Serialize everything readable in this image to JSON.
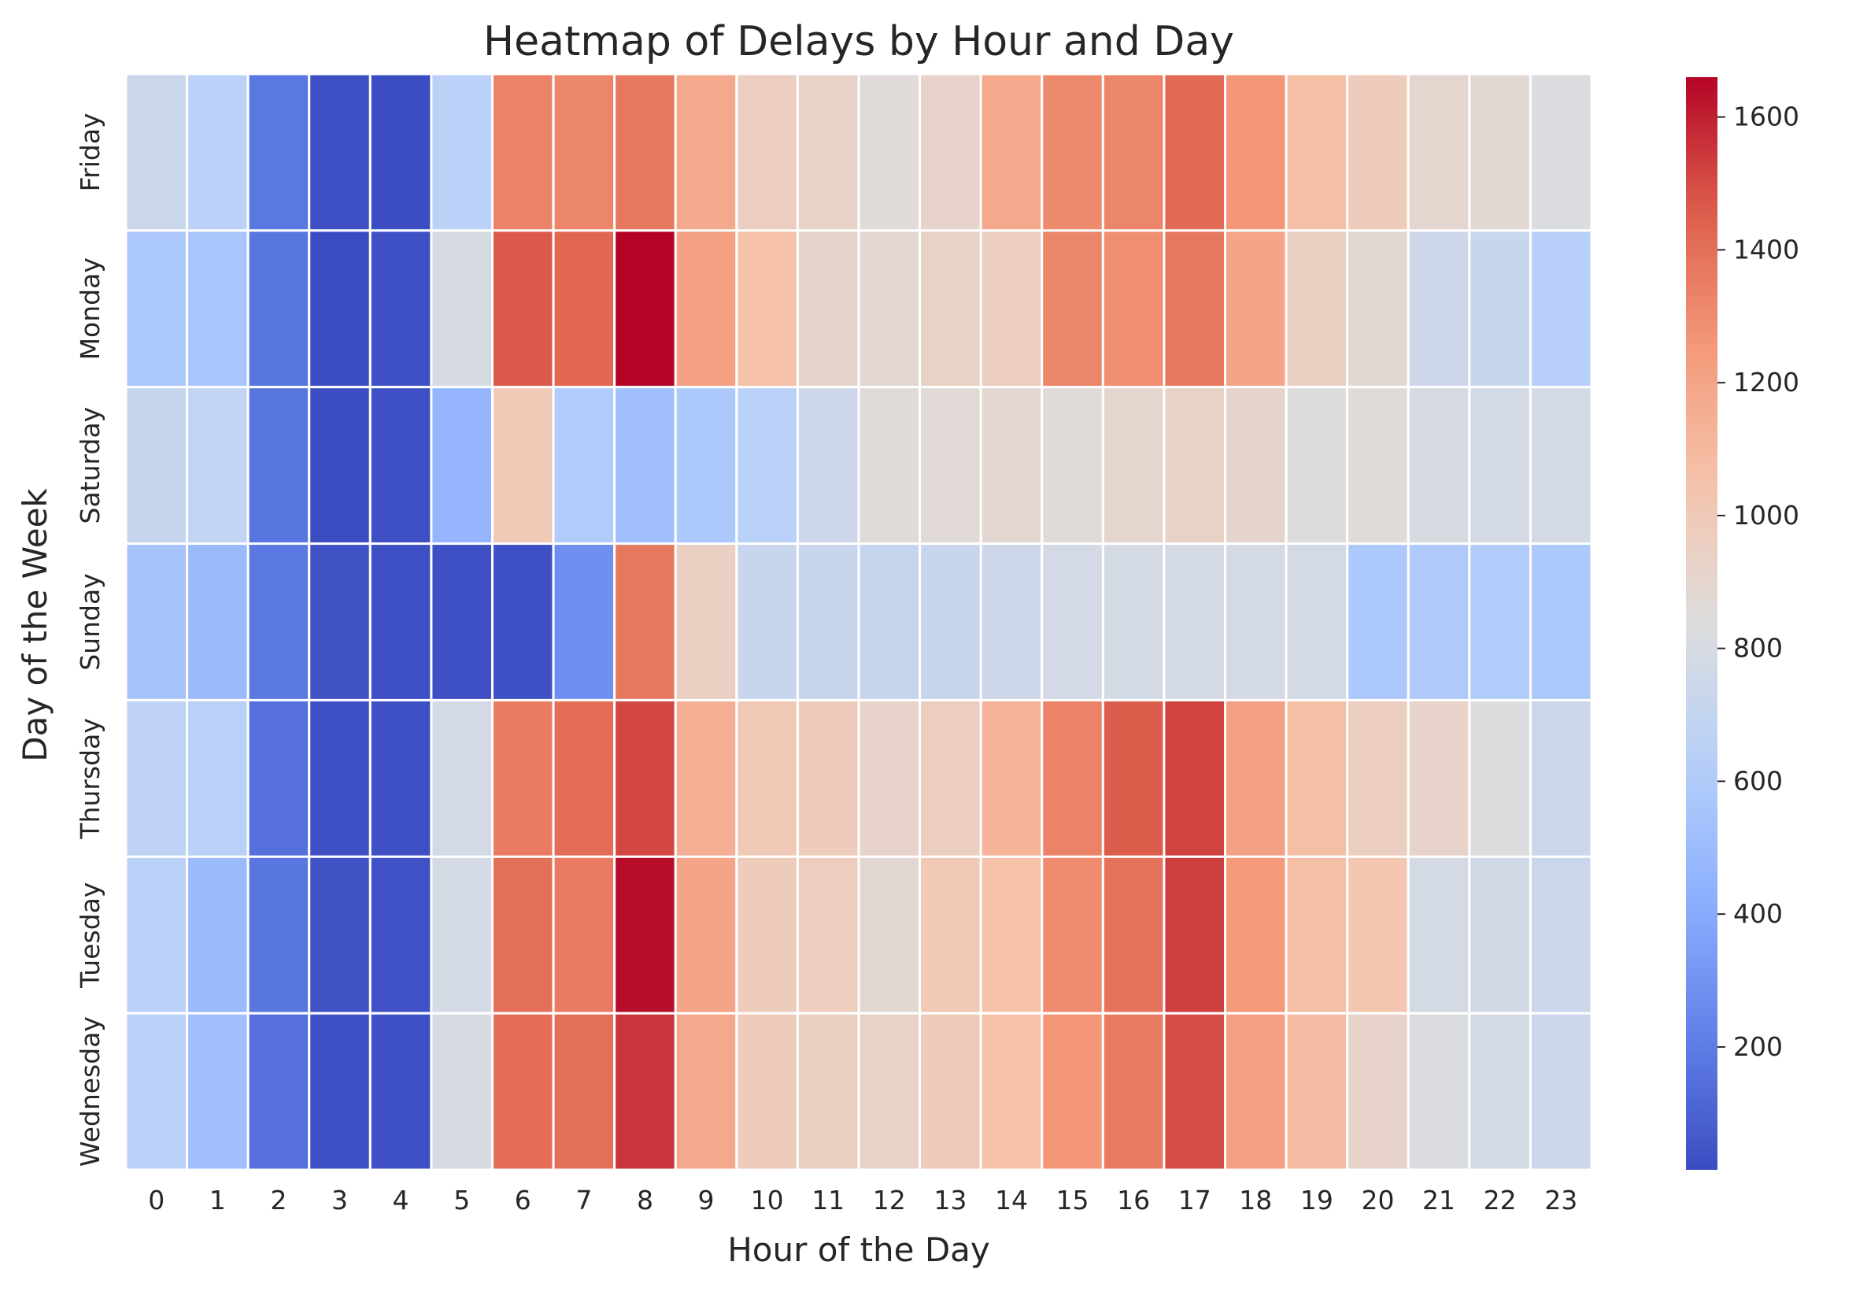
{
  "chart_data": {
    "type": "heatmap",
    "title": "Heatmap of Delays by Hour and Day",
    "xlabel": "Hour of the Day",
    "ylabel": "Day of the Week",
    "x": [
      "0",
      "1",
      "2",
      "3",
      "4",
      "5",
      "6",
      "7",
      "8",
      "9",
      "10",
      "11",
      "12",
      "13",
      "14",
      "15",
      "16",
      "17",
      "18",
      "19",
      "20",
      "21",
      "22",
      "23"
    ],
    "y": [
      "Friday",
      "Monday",
      "Saturday",
      "Sunday",
      "Thursday",
      "Tuesday",
      "Wednesday"
    ],
    "values": [
      [
        730,
        650,
        180,
        25,
        20,
        650,
        1330,
        1320,
        1370,
        1180,
        960,
        930,
        860,
        920,
        1180,
        1310,
        1320,
        1420,
        1260,
        1070,
        980,
        900,
        880,
        820
      ],
      [
        580,
        560,
        170,
        20,
        30,
        800,
        1470,
        1430,
        1660,
        1220,
        1060,
        910,
        890,
        930,
        960,
        1320,
        1290,
        1370,
        1200,
        950,
        880,
        750,
        720,
        630
      ],
      [
        710,
        690,
        170,
        20,
        30,
        460,
        1000,
        600,
        520,
        580,
        640,
        750,
        860,
        870,
        890,
        860,
        900,
        940,
        910,
        840,
        860,
        800,
        780,
        780
      ],
      [
        550,
        490,
        180,
        40,
        30,
        25,
        30,
        280,
        1370,
        950,
        720,
        720,
        710,
        720,
        750,
        780,
        790,
        790,
        790,
        780,
        580,
        590,
        600,
        580
      ],
      [
        660,
        640,
        150,
        30,
        30,
        780,
        1360,
        1410,
        1510,
        1150,
        1000,
        980,
        920,
        960,
        1120,
        1330,
        1460,
        1520,
        1220,
        1070,
        960,
        920,
        830,
        740
      ],
      [
        650,
        500,
        170,
        40,
        35,
        790,
        1400,
        1360,
        1640,
        1200,
        980,
        970,
        880,
        1000,
        1060,
        1300,
        1390,
        1530,
        1250,
        1070,
        1030,
        790,
        770,
        730
      ],
      [
        650,
        520,
        150,
        30,
        30,
        800,
        1410,
        1400,
        1550,
        1180,
        980,
        950,
        930,
        990,
        1060,
        1260,
        1360,
        1500,
        1220,
        1080,
        920,
        820,
        790,
        740
      ]
    ],
    "vmin": 15,
    "vmax": 1660,
    "colormap": "coolwarm",
    "colorbar_ticks": [
      "200",
      "400",
      "600",
      "800",
      "1000",
      "1200",
      "1400",
      "1600"
    ],
    "grid": false,
    "cell_border_color": "#ffffff"
  }
}
